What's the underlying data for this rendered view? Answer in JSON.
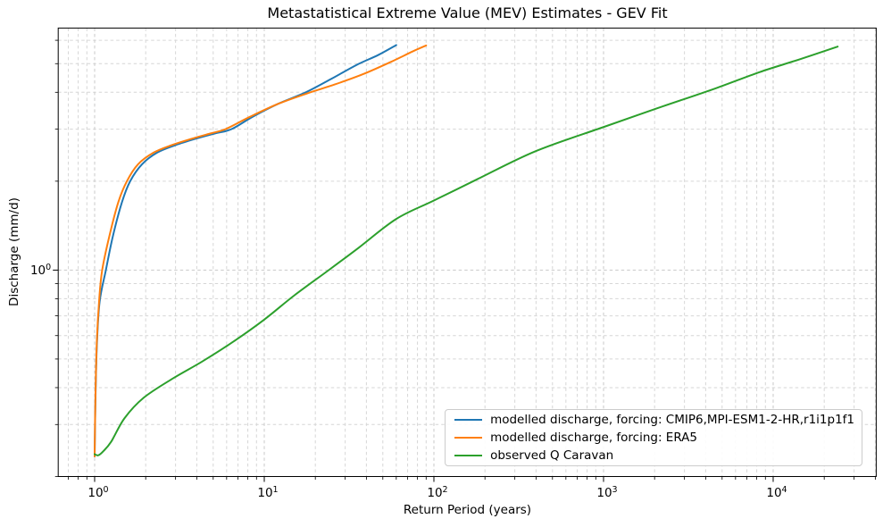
{
  "figure": {
    "title": "Metastatistical Extreme Value (MEV) Estimates - GEV Fit",
    "xlabel": "Return Period (years)",
    "ylabel": "Discharge (mm/d)"
  },
  "chart_data": {
    "type": "line",
    "title": "Metastatistical Extreme Value (MEV) Estimates - GEV Fit",
    "xlabel": "Return Period (years)",
    "ylabel": "Discharge (mm/d)",
    "xscale": "log",
    "yscale": "log",
    "xlim": [
      0.61,
      40500
    ],
    "ylim": [
      0.2,
      6.6
    ],
    "grid": {
      "which": "both",
      "linestyle": "dashed",
      "major_color": "#c9c9c9",
      "minor_color": "#d6d6d6"
    },
    "legend": {
      "position": "lower right",
      "edge_color": "#cccccc"
    },
    "xticks": [
      {
        "value": 1,
        "base": "10",
        "exp": "0"
      },
      {
        "value": 10,
        "base": "10",
        "exp": "1"
      },
      {
        "value": 100,
        "base": "10",
        "exp": "2"
      },
      {
        "value": 1000,
        "base": "10",
        "exp": "3"
      },
      {
        "value": 10000,
        "base": "10",
        "exp": "4"
      }
    ],
    "yticks": [
      {
        "value": 1,
        "base": "10",
        "exp": "0"
      }
    ],
    "series": [
      {
        "name": "modelled discharge, forcing: CMIP6,MPI-ESM1-2-HR,r1i1p1f1",
        "color": "#1f77b4",
        "x": [
          1.0,
          1.01,
          1.03,
          1.07,
          1.165,
          1.28,
          1.45,
          1.62,
          1.9,
          2.34,
          3.0,
          3.9,
          5.1,
          6.4,
          8.5,
          12,
          17.6,
          25,
          35,
          47,
          60
        ],
        "y": [
          0.234,
          0.35,
          0.55,
          0.78,
          1.0,
          1.3,
          1.7,
          2.0,
          2.28,
          2.5,
          2.65,
          2.78,
          2.9,
          3.0,
          3.3,
          3.65,
          4.0,
          4.45,
          4.95,
          5.35,
          5.78
        ]
      },
      {
        "name": "modelled discharge, forcing: ERA5",
        "color": "#ff7f0e",
        "x": [
          1.0,
          1.01,
          1.03,
          1.065,
          1.108,
          1.22,
          1.38,
          1.55,
          1.8,
          2.23,
          2.85,
          3.7,
          4.8,
          5.9,
          8.2,
          12,
          18,
          26,
          38,
          55,
          75,
          90
        ],
        "y": [
          0.234,
          0.36,
          0.57,
          0.8,
          1.0,
          1.3,
          1.7,
          2.0,
          2.28,
          2.5,
          2.65,
          2.78,
          2.9,
          3.0,
          3.3,
          3.65,
          3.97,
          4.25,
          4.6,
          5.05,
          5.5,
          5.76
        ]
      },
      {
        "name": "observed Q Caravan",
        "color": "#2ca02c",
        "x": [
          1.0,
          1.05,
          1.12,
          1.25,
          1.5,
          1.95,
          2.9,
          4.3,
          6.5,
          10,
          15,
          24,
          36,
          60,
          100,
          180,
          400,
          1000,
          2100,
          4500,
          8300,
          14000,
          24000
        ],
        "y": [
          0.238,
          0.236,
          0.243,
          0.262,
          0.315,
          0.37,
          0.43,
          0.49,
          0.57,
          0.68,
          0.82,
          1.0,
          1.19,
          1.49,
          1.72,
          2.03,
          2.53,
          3.05,
          3.54,
          4.11,
          4.68,
          5.15,
          5.71
        ]
      }
    ]
  }
}
